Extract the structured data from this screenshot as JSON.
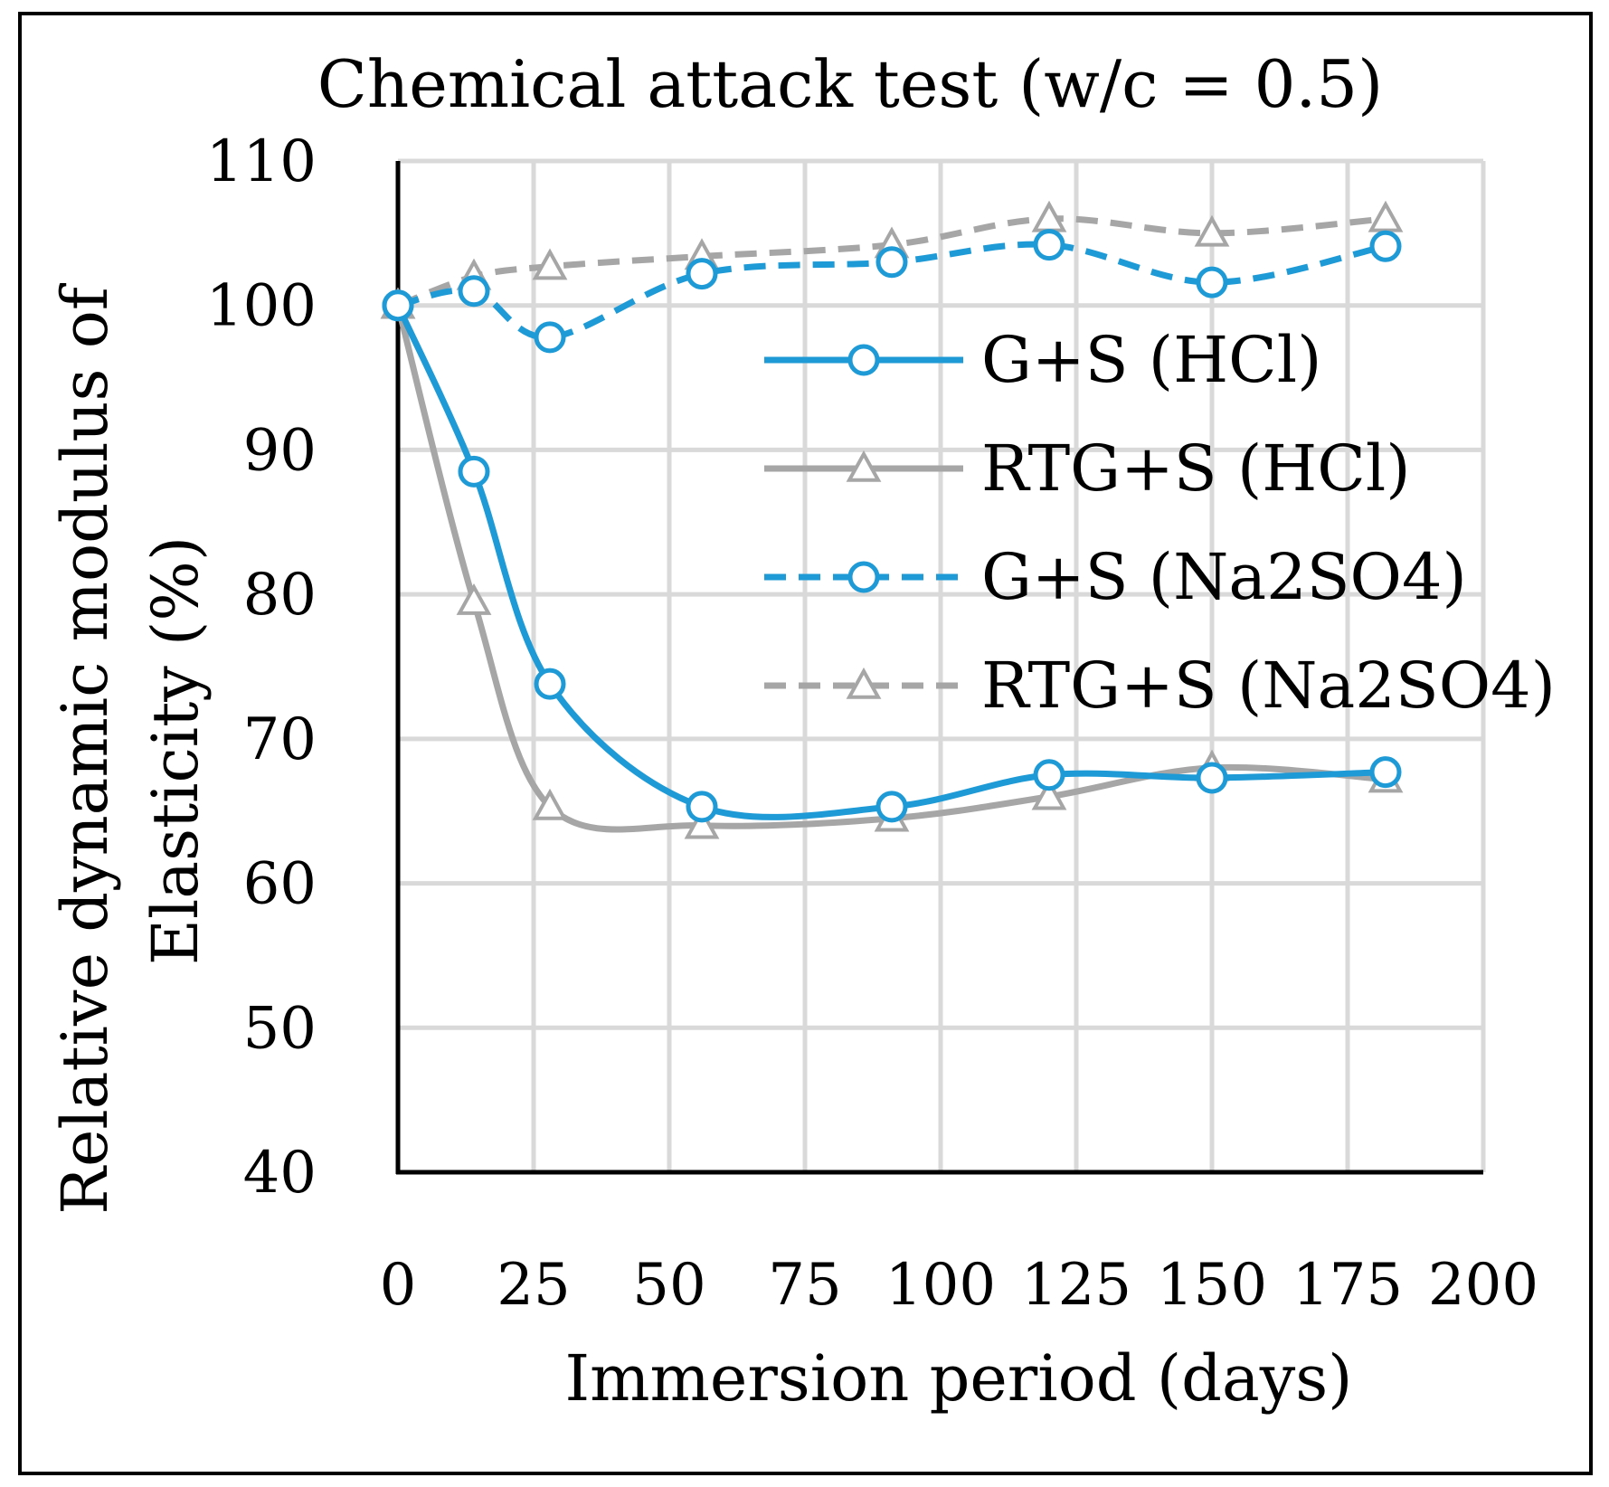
{
  "chart_data": {
    "type": "line",
    "title": "Chemical attack test  (w/c = 0.5)",
    "xlabel": "Immersion period (days)",
    "ylabel_lines": [
      "Relative dynamic modulus of",
      "Elasticity (%)"
    ],
    "xlim": [
      0,
      200
    ],
    "ylim": [
      40,
      110
    ],
    "x_ticks": [
      0,
      25,
      50,
      75,
      100,
      125,
      150,
      175,
      200
    ],
    "y_ticks": [
      40,
      50,
      60,
      70,
      80,
      90,
      100,
      110
    ],
    "grid": true,
    "legend_position": "center-right",
    "series": [
      {
        "name": "G+S  (HCl)",
        "color": "#1e9ad6",
        "line": "solid",
        "marker": "circle",
        "x": [
          0,
          14,
          28,
          56,
          91,
          120,
          150,
          182
        ],
        "y": [
          100,
          88.5,
          73.8,
          65.3,
          65.3,
          67.5,
          67.3,
          67.7
        ]
      },
      {
        "name": "RTG+S  (HCl)",
        "color": "#a6a6a6",
        "line": "solid",
        "marker": "triangle",
        "x": [
          0,
          14,
          28,
          56,
          91,
          120,
          150,
          182
        ],
        "y": [
          100,
          79.5,
          65.3,
          64,
          64.5,
          66,
          68,
          67.2
        ]
      },
      {
        "name": "G+S (Na2SO4)",
        "color": "#1e9ad6",
        "line": "dashed",
        "marker": "circle",
        "x": [
          0,
          14,
          28,
          56,
          91,
          120,
          150,
          182
        ],
        "y": [
          100,
          101,
          97.8,
          102.2,
          103,
          104.2,
          101.6,
          104.1
        ]
      },
      {
        "name": "RTG+S (Na2SO4)",
        "color": "#a6a6a6",
        "line": "dashed",
        "marker": "triangle",
        "x": [
          0,
          14,
          28,
          56,
          91,
          120,
          150,
          182
        ],
        "y": [
          100,
          102,
          102.7,
          103.4,
          104.2,
          106,
          105,
          106
        ]
      }
    ]
  }
}
